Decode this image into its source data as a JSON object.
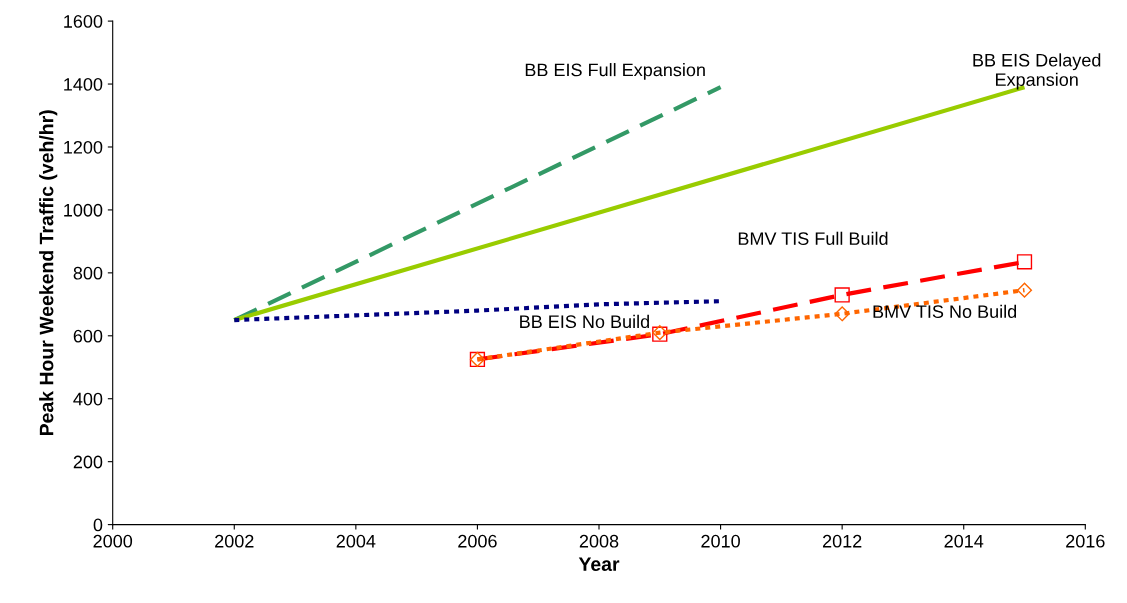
{
  "chart_data": {
    "type": "line",
    "xlabel": "Year",
    "ylabel": "Peak Hour Weekend Traffic (veh/hr)",
    "xlim": [
      2000,
      2016
    ],
    "xticks": [
      2000,
      2002,
      2004,
      2006,
      2008,
      2010,
      2012,
      2014,
      2016
    ],
    "ylim": [
      0,
      1600
    ],
    "yticks": [
      0,
      200,
      400,
      600,
      800,
      1000,
      1200,
      1400,
      1600
    ],
    "grid": false,
    "legend": false,
    "series": [
      {
        "name": "BB EIS Full Expansion",
        "color": "#339966",
        "line_style": "dashed",
        "marker": "none",
        "x": [
          2002,
          2010
        ],
        "values": [
          650,
          1390
        ]
      },
      {
        "name": "BB EIS Delayed Expansion",
        "color": "#99cc00",
        "line_style": "solid",
        "marker": "none",
        "x": [
          2002,
          2015
        ],
        "values": [
          650,
          1390
        ]
      },
      {
        "name": "BB EIS No Build",
        "color": "#000080",
        "line_style": "dotted",
        "marker": "none",
        "x": [
          2002,
          2004,
          2006,
          2008,
          2010
        ],
        "values": [
          650,
          665,
          680,
          700,
          710
        ]
      },
      {
        "name": "BMV TIS Full Build",
        "color": "#ff0000",
        "line_style": "dashed",
        "marker": "square",
        "x": [
          2006,
          2009,
          2012,
          2015
        ],
        "values": [
          525,
          605,
          730,
          835
        ]
      },
      {
        "name": "BMV TIS No Build",
        "color": "#ff6600",
        "line_style": "dotted",
        "marker": "diamond",
        "x": [
          2006,
          2009,
          2012,
          2015
        ],
        "values": [
          525,
          610,
          670,
          745
        ]
      }
    ]
  }
}
